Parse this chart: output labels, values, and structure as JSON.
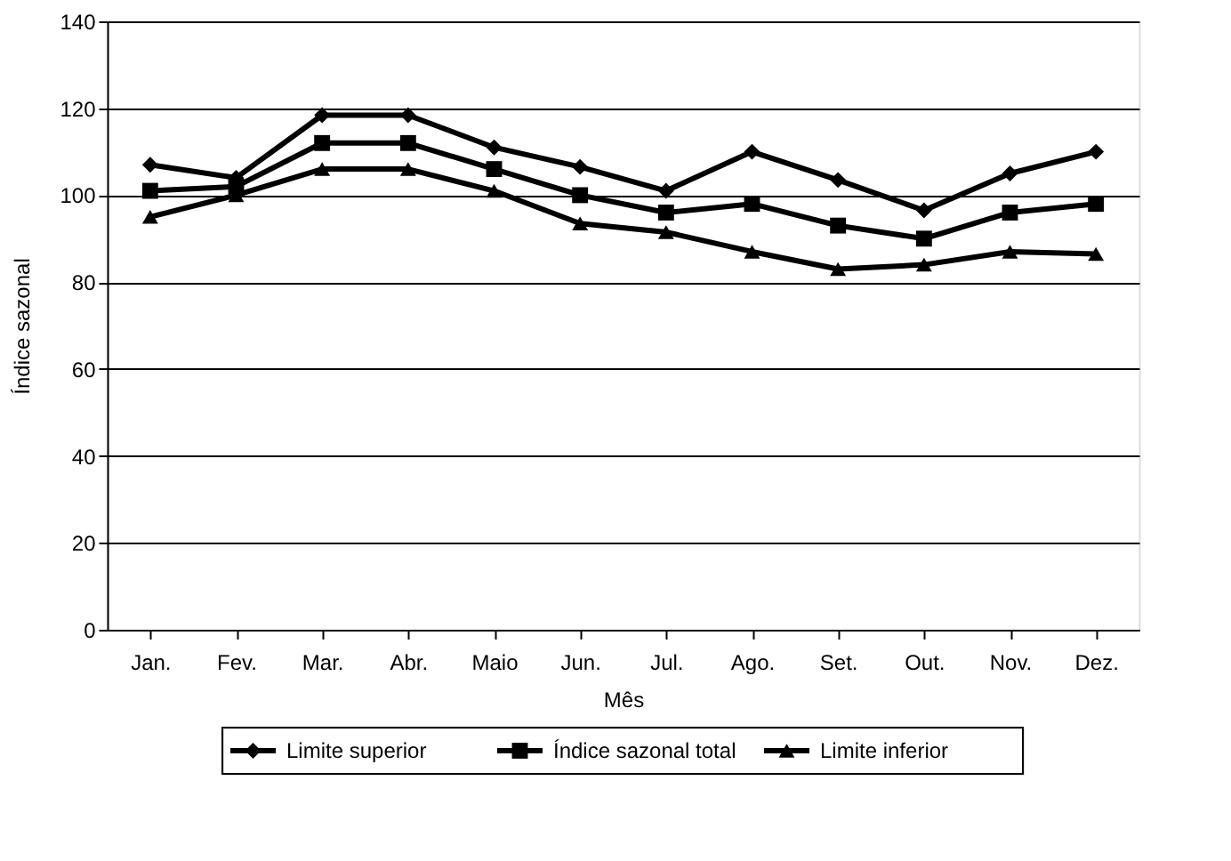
{
  "chart_data": {
    "type": "line",
    "xlabel": "Mês",
    "ylabel": "Índice sazonal",
    "categories": [
      "Jan.",
      "Fev.",
      "Mar.",
      "Abr.",
      "Maio",
      "Jun.",
      "Jul.",
      "Ago.",
      "Set.",
      "Out.",
      "Nov.",
      "Dez."
    ],
    "series": [
      {
        "name": "Limite superior",
        "color": "#000000",
        "marker": "diamond",
        "values": [
          107,
          104,
          118.4,
          118.4,
          111,
          106.5,
          101,
          110,
          103.5,
          96.5,
          105,
          110
        ]
      },
      {
        "name": "Índice sazonal total",
        "color": "#000000",
        "marker": "square",
        "values": [
          101,
          102,
          112,
          112,
          106,
          100,
          96,
          98,
          93,
          90,
          96,
          98
        ]
      },
      {
        "name": "Limite inferior",
        "color": "#000000",
        "marker": "triangle",
        "values": [
          95,
          100,
          106,
          106,
          101,
          93.5,
          91.5,
          87,
          83,
          84,
          87,
          86.5
        ]
      }
    ],
    "ylim": [
      0,
      140
    ],
    "yticks": [
      0,
      20,
      40,
      60,
      80,
      100,
      120,
      140
    ],
    "grid": "y",
    "legend": "bottom",
    "line_style": "solid"
  }
}
